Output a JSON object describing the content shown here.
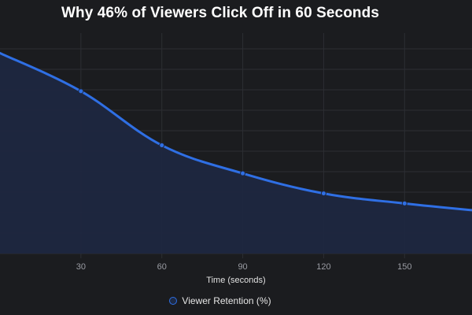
{
  "chart_data": {
    "type": "area",
    "title": "Why 46% of Viewers Click Off in 60 Seconds",
    "xlabel": "Time (seconds)",
    "ylabel": "",
    "x": [
      0,
      30,
      60,
      90,
      120,
      150,
      180
    ],
    "x_ticks": [
      "30",
      "60",
      "90",
      "120",
      "150"
    ],
    "xlim": [
      0,
      175
    ],
    "ylim": [
      0,
      100
    ],
    "grid": true,
    "legend_position": "bottom",
    "series": [
      {
        "name": "Viewer Retention (%)",
        "values": [
          100,
          81,
          54,
          40,
          30,
          25,
          21
        ],
        "color": "#2f6fe4",
        "fill": "#1e2740"
      }
    ]
  }
}
